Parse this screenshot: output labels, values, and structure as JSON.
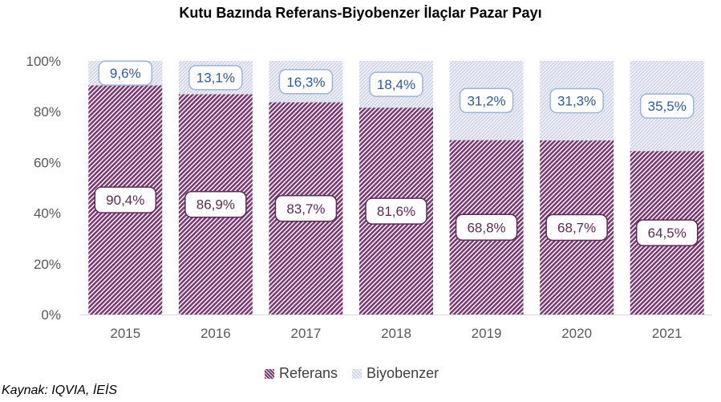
{
  "chart_data": {
    "type": "bar",
    "stacked": true,
    "title": "Kutu Bazında Referans-Biyobenzer İlaçlar Pazar Payı",
    "categories": [
      "2015",
      "2016",
      "2017",
      "2018",
      "2019",
      "2020",
      "2021"
    ],
    "series": [
      {
        "name": "Referans",
        "values": [
          90.4,
          86.9,
          83.7,
          81.6,
          68.8,
          68.7,
          64.5
        ],
        "labels": [
          "90,4%",
          "86,9%",
          "83,7%",
          "81,6%",
          "68,8%",
          "68,7%",
          "64,5%"
        ]
      },
      {
        "name": "Biyobenzer",
        "values": [
          9.6,
          13.1,
          16.3,
          18.4,
          31.2,
          31.3,
          35.5
        ],
        "labels": [
          "9,6%",
          "13,1%",
          "16,3%",
          "18,4%",
          "31,2%",
          "31,3%",
          "35,5%"
        ]
      }
    ],
    "y_ticks": [
      "0%",
      "20%",
      "40%",
      "60%",
      "80%",
      "100%"
    ],
    "ylim": [
      0,
      100
    ],
    "legend_position": "bottom",
    "colors": {
      "referans": "#7a3a73",
      "biyobenzer": "#c5c8e0",
      "referans_label_border": "#5b2a55",
      "biyobenzer_label_border": "#9db4d6",
      "biyobenzer_label_text": "#2e5a9c"
    }
  },
  "source": "Kaynak: IQVIA, İEİS"
}
